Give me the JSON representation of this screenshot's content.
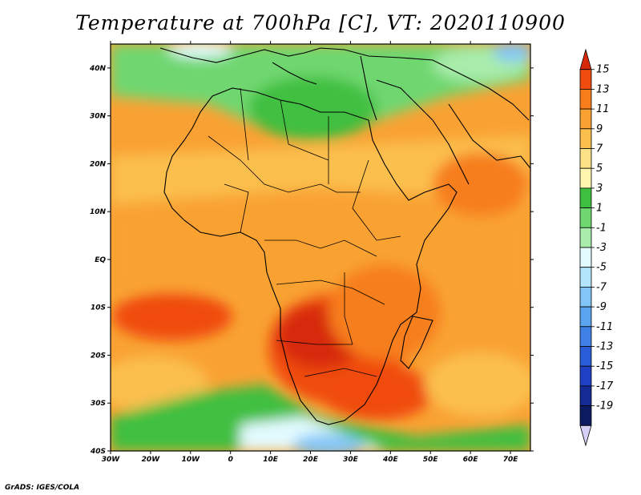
{
  "title": "Temperature at 700hPa [C], VT: 2020110900",
  "credit": "GrADS: IGES/COLA",
  "map": {
    "lon_range": [
      -30,
      75
    ],
    "lat_range": [
      -40,
      45
    ],
    "lon_ticks": [
      {
        "value": -30,
        "label": "30W"
      },
      {
        "value": -20,
        "label": "20W"
      },
      {
        "value": -10,
        "label": "10W"
      },
      {
        "value": 0,
        "label": "0"
      },
      {
        "value": 10,
        "label": "10E"
      },
      {
        "value": 20,
        "label": "20E"
      },
      {
        "value": 30,
        "label": "30E"
      },
      {
        "value": 40,
        "label": "40E"
      },
      {
        "value": 50,
        "label": "50E"
      },
      {
        "value": 60,
        "label": "60E"
      },
      {
        "value": 70,
        "label": "70E"
      }
    ],
    "lat_ticks": [
      {
        "value": 40,
        "label": "40N"
      },
      {
        "value": 30,
        "label": "30N"
      },
      {
        "value": 20,
        "label": "20N"
      },
      {
        "value": 10,
        "label": "10N"
      },
      {
        "value": 0,
        "label": "EQ"
      },
      {
        "value": -10,
        "label": "10S"
      },
      {
        "value": -20,
        "label": "20S"
      },
      {
        "value": -30,
        "label": "30S"
      },
      {
        "value": -40,
        "label": "40S"
      }
    ]
  },
  "colorbar": {
    "labels": [
      "15",
      "13",
      "11",
      "9",
      "7",
      "5",
      "3",
      "1",
      "-1",
      "-3",
      "-5",
      "-7",
      "-9",
      "-11",
      "-13",
      "-15",
      "-17",
      "-19"
    ],
    "colors_top_to_bottom": [
      "#d72a0a",
      "#f04c10",
      "#f77e1a",
      "#f9a233",
      "#fbbf4e",
      "#fde186",
      "#fff6b0",
      "#3fbf3f",
      "#6fd76f",
      "#a9ecab",
      "#e3fbff",
      "#b3e6fb",
      "#82c6f7",
      "#5aa4f0",
      "#3f80e6",
      "#2a5ed9",
      "#1f40c4",
      "#142a94",
      "#0c1a62",
      "#d6d0f7"
    ]
  }
}
